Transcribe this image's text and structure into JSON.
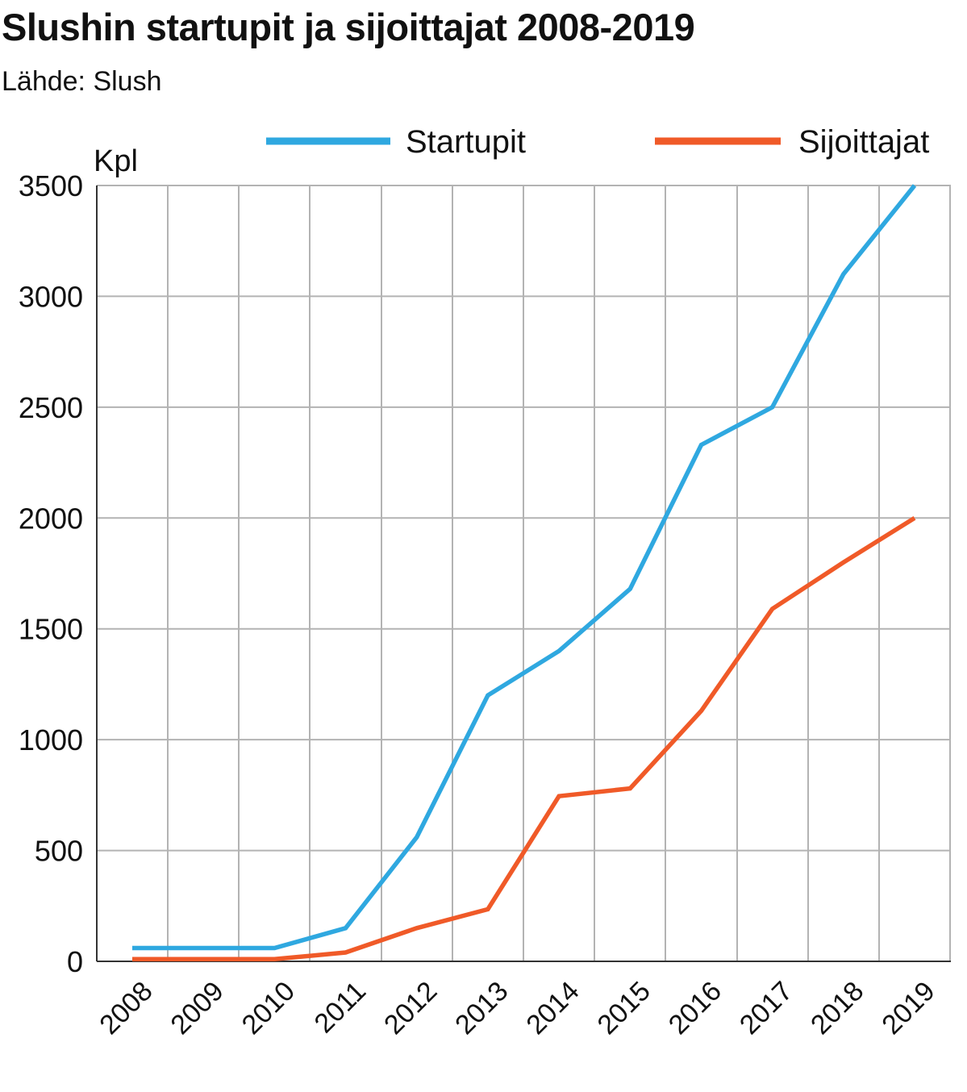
{
  "header": {
    "title": "Slushin startupit ja sijoittajat 2008-2019",
    "subtitle": "Lähde: Slush"
  },
  "chart_data": {
    "type": "line",
    "title": "Slushin startupit ja sijoittajat 2008-2019",
    "subtitle": "Lähde: Slush",
    "xlabel": "",
    "ylabel": "Kpl",
    "categories": [
      "2008",
      "2009",
      "2010",
      "2011",
      "2012",
      "2013",
      "2014",
      "2015",
      "2016",
      "2017",
      "2018",
      "2019"
    ],
    "series": [
      {
        "name": "Startupit",
        "color": "#2fa8e0",
        "values": [
          60,
          60,
          60,
          150,
          560,
          1200,
          1400,
          1680,
          2330,
          2500,
          3100,
          3500
        ]
      },
      {
        "name": "Sijoittajat",
        "color": "#f05a28",
        "values": [
          10,
          10,
          10,
          40,
          150,
          235,
          745,
          780,
          1130,
          1590,
          1800,
          2000
        ]
      }
    ],
    "yticks": [
      0,
      500,
      1000,
      1500,
      2000,
      2500,
      3000,
      3500
    ],
    "ylim": [
      0,
      3500
    ],
    "grid": true,
    "legend_position": "top-right",
    "gridline_color": "#b3b3b3",
    "axis_color": "#333333"
  }
}
